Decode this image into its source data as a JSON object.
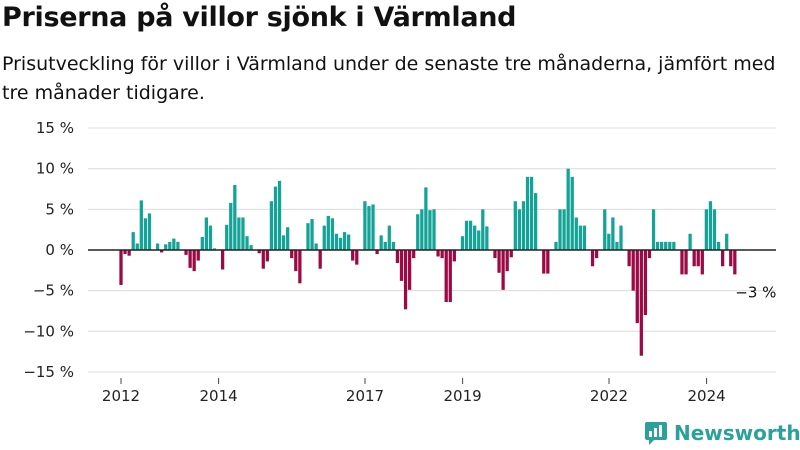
{
  "title": "Priserna på villor sjönk i Värmland",
  "subtitle": "Prisutveckling för villor i Värmland under de senaste tre månaderna, jämfört med tre månader tidigare.",
  "brand": "Newsworthy",
  "colors": {
    "positive": "#14a397",
    "negative": "#9b0a45",
    "grid": "#dcdcdc",
    "zero": "#222222",
    "brand": "#2aa29a"
  },
  "chart_data": {
    "type": "bar",
    "title": "Priserna på villor sjönk i Värmland",
    "xlabel": "",
    "ylabel": "",
    "ylim": [
      -15,
      15
    ],
    "yticks": [
      15,
      10,
      5,
      0,
      -5,
      -10,
      -15
    ],
    "ytick_labels": [
      "15 %",
      "10 %",
      "5 %",
      "0 %",
      "−5 %",
      "−10 %",
      "−15 %"
    ],
    "xticks": [
      {
        "label": "2012",
        "x": 2012
      },
      {
        "label": "2014",
        "x": 2014
      },
      {
        "label": "2017",
        "x": 2017
      },
      {
        "label": "2019",
        "x": 2019
      },
      {
        "label": "2022",
        "x": 2022
      },
      {
        "label": "2024",
        "x": 2024
      }
    ],
    "x_start": 2012.0,
    "x_step": 0.0833,
    "values": [
      -4.3,
      -0.5,
      -0.7,
      2.2,
      0.8,
      6.1,
      3.9,
      4.5,
      0,
      0.8,
      -0.3,
      0.7,
      1.0,
      1.4,
      1.0,
      0,
      -0.6,
      -2.2,
      -2.6,
      -1.3,
      1.6,
      4.0,
      3.0,
      0.2,
      0,
      -2.4,
      3.1,
      5.8,
      8.0,
      4.0,
      4.0,
      1.7,
      0.6,
      0,
      -0.4,
      -2.3,
      -1.4,
      6.0,
      7.8,
      8.5,
      1.8,
      2.8,
      -1.0,
      -2.6,
      -4.1,
      0,
      3.3,
      3.8,
      0.8,
      -2.3,
      3.0,
      4.2,
      3.9,
      2.0,
      1.5,
      2.2,
      1.9,
      -1.3,
      -1.8,
      0,
      6.0,
      5.4,
      5.6,
      -0.5,
      1.8,
      1.0,
      3.0,
      1.0,
      -1.6,
      -3.8,
      -7.3,
      -4.9,
      -1.0,
      4.4,
      5.0,
      7.7,
      4.9,
      5.0,
      -0.8,
      -1.0,
      -6.4,
      -6.4,
      -1.4,
      0,
      1.7,
      3.6,
      3.6,
      3.0,
      2.4,
      5.0,
      2.9,
      0,
      -1.0,
      -2.8,
      -4.9,
      -2.6,
      -0.9,
      6.0,
      5.0,
      6.0,
      9.0,
      9.0,
      7.0,
      0,
      -2.9,
      -2.9,
      0,
      1.0,
      5.0,
      5.0,
      10.0,
      9.0,
      4.0,
      3.0,
      3.0,
      0,
      -2.0,
      -1.0,
      0,
      5.0,
      2.0,
      4.0,
      1.0,
      3.0,
      0,
      -2.0,
      -5.0,
      -9.0,
      -13.0,
      -8.0,
      -1.0,
      5.0,
      1.0,
      1.0,
      1.0,
      1.0,
      1.0,
      0,
      -3.0,
      -3.0,
      2.0,
      -2.0,
      -2.0,
      -3.0,
      5.0,
      6.0,
      5.0,
      1.0,
      -2.0,
      2.0,
      -2.0,
      -3.0
    ],
    "annotation": {
      "text": "−3 %"
    }
  }
}
